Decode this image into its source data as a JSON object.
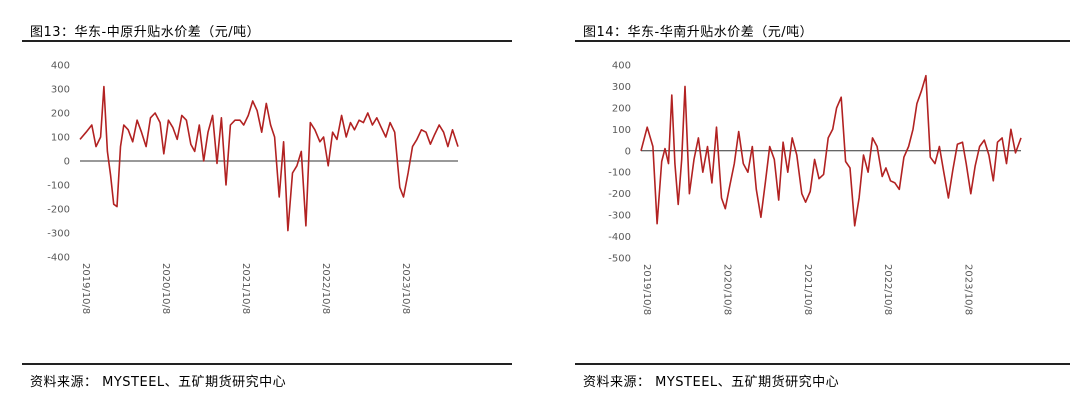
{
  "charts": [
    {
      "title": "图13：华东-中原升贴水价差（元/吨）",
      "source": "资料来源：  MYSTEEL、五矿期货研究中心"
    },
    {
      "title": "图14：华东-华南升贴水价差（元/吨）",
      "source": "资料来源：  MYSTEEL、五矿期货研究中心"
    }
  ],
  "chart_data": [
    {
      "type": "line",
      "title": "图13：华东-中原升贴水价差（元/吨）",
      "xlabel": "",
      "ylabel": "",
      "x_ticks": [
        "2019/10/8",
        "2020/10/8",
        "2021/10/8",
        "2022/10/8",
        "2023/10/8"
      ],
      "y_ticks": [
        400,
        300,
        200,
        100,
        0,
        -100,
        -200,
        -300,
        -400
      ],
      "ylim": [
        -400,
        400
      ],
      "xlim": [
        "2019-10-08",
        "2024-06-30"
      ],
      "grid": false,
      "legend": "none",
      "series_color": "#b22222",
      "series": [
        {
          "x": [
            "2019-10-08",
            "2019-11-05",
            "2019-12-01",
            "2019-12-20",
            "2020-01-10",
            "2020-01-25",
            "2020-02-10",
            "2020-02-25",
            "2020-03-10",
            "2020-03-25",
            "2020-04-10",
            "2020-04-25",
            "2020-05-15",
            "2020-06-05",
            "2020-06-25",
            "2020-07-15",
            "2020-08-05",
            "2020-08-25",
            "2020-09-15",
            "2020-10-08",
            "2020-10-25",
            "2020-11-15",
            "2020-12-05",
            "2020-12-25",
            "2021-01-15",
            "2021-02-05",
            "2021-02-25",
            "2021-03-15",
            "2021-04-05",
            "2021-04-25",
            "2021-05-15",
            "2021-06-05",
            "2021-06-25",
            "2021-07-15",
            "2021-08-05",
            "2021-08-25",
            "2021-09-15",
            "2021-10-08",
            "2021-10-25",
            "2021-11-15",
            "2021-12-05",
            "2021-12-25",
            "2022-01-15",
            "2022-02-05",
            "2022-02-25",
            "2022-03-15",
            "2022-04-05",
            "2022-04-25",
            "2022-05-15",
            "2022-06-05",
            "2022-06-25",
            "2022-07-15",
            "2022-08-05",
            "2022-08-25",
            "2022-09-15",
            "2022-10-08",
            "2022-10-25",
            "2022-11-15",
            "2022-12-05",
            "2022-12-25",
            "2023-01-15",
            "2023-02-05",
            "2023-02-25",
            "2023-03-15",
            "2023-04-05",
            "2023-04-25",
            "2023-05-15",
            "2023-06-05",
            "2023-06-25",
            "2023-07-15",
            "2023-08-05",
            "2023-08-25",
            "2023-09-15",
            "2023-10-08",
            "2023-10-25",
            "2023-11-15",
            "2023-12-05",
            "2023-12-25",
            "2024-01-15",
            "2024-02-05",
            "2024-02-25",
            "2024-03-15",
            "2024-04-05",
            "2024-04-25",
            "2024-05-15",
            "2024-06-05",
            "2024-06-30"
          ],
          "values": [
            90,
            120,
            150,
            60,
            100,
            310,
            40,
            -60,
            -180,
            -190,
            60,
            150,
            130,
            80,
            170,
            120,
            60,
            180,
            200,
            160,
            30,
            170,
            140,
            90,
            190,
            170,
            70,
            40,
            150,
            0,
            120,
            190,
            -10,
            180,
            -100,
            150,
            170,
            170,
            150,
            190,
            250,
            210,
            120,
            240,
            150,
            100,
            -150,
            80,
            -290,
            -50,
            -20,
            40,
            -270,
            160,
            130,
            80,
            100,
            -20,
            120,
            90,
            190,
            100,
            160,
            130,
            170,
            160,
            200,
            150,
            180,
            140,
            100,
            160,
            120,
            -110,
            -150,
            -50,
            60,
            90,
            130,
            120,
            70,
            110,
            150,
            120,
            60,
            130,
            60
          ]
        }
      ]
    },
    {
      "type": "line",
      "title": "图14：华东-华南升贴水价差（元/吨）",
      "xlabel": "",
      "ylabel": "",
      "x_ticks": [
        "2019/10/8",
        "2020/10/8",
        "2021/10/8",
        "2022/10/8",
        "2023/10/8"
      ],
      "y_ticks": [
        400,
        300,
        200,
        100,
        0,
        -100,
        -200,
        -300,
        -400,
        -500
      ],
      "ylim": [
        -500,
        400
      ],
      "xlim": [
        "2019-10-08",
        "2024-06-30"
      ],
      "grid": false,
      "legend": "none",
      "series_color": "#b22222",
      "series": [
        {
          "x": [
            "2019-10-08",
            "2019-11-05",
            "2019-12-01",
            "2019-12-20",
            "2020-01-10",
            "2020-01-25",
            "2020-02-10",
            "2020-02-25",
            "2020-03-10",
            "2020-03-25",
            "2020-04-10",
            "2020-04-25",
            "2020-05-15",
            "2020-06-05",
            "2020-06-25",
            "2020-07-15",
            "2020-08-05",
            "2020-08-25",
            "2020-09-15",
            "2020-10-08",
            "2020-10-25",
            "2020-11-15",
            "2020-12-05",
            "2020-12-25",
            "2021-01-15",
            "2021-02-05",
            "2021-02-25",
            "2021-03-15",
            "2021-04-05",
            "2021-04-25",
            "2021-05-15",
            "2021-06-05",
            "2021-06-25",
            "2021-07-15",
            "2021-08-05",
            "2021-08-25",
            "2021-09-15",
            "2021-10-08",
            "2021-10-25",
            "2021-11-15",
            "2021-12-05",
            "2021-12-25",
            "2022-01-15",
            "2022-02-05",
            "2022-02-25",
            "2022-03-15",
            "2022-04-05",
            "2022-04-25",
            "2022-05-15",
            "2022-06-05",
            "2022-06-25",
            "2022-07-15",
            "2022-08-05",
            "2022-08-25",
            "2022-09-15",
            "2022-10-08",
            "2022-10-25",
            "2022-11-15",
            "2022-12-05",
            "2022-12-25",
            "2023-01-15",
            "2023-02-05",
            "2023-02-25",
            "2023-03-15",
            "2023-04-05",
            "2023-04-25",
            "2023-05-15",
            "2023-06-05",
            "2023-06-25",
            "2023-07-15",
            "2023-08-05",
            "2023-08-25",
            "2023-09-15",
            "2023-10-08",
            "2023-10-25",
            "2023-11-15",
            "2023-12-05",
            "2023-12-25",
            "2024-01-15",
            "2024-02-05",
            "2024-02-25",
            "2024-03-15",
            "2024-04-05",
            "2024-04-25",
            "2024-05-15",
            "2024-06-05",
            "2024-06-30"
          ],
          "values": [
            0,
            110,
            20,
            -340,
            -50,
            10,
            -60,
            260,
            -60,
            -250,
            -40,
            300,
            -200,
            -40,
            60,
            -100,
            20,
            -150,
            110,
            -220,
            -270,
            -160,
            -60,
            90,
            -60,
            -100,
            20,
            -180,
            -310,
            -150,
            20,
            -40,
            -230,
            40,
            -100,
            60,
            -20,
            -200,
            -240,
            -190,
            -40,
            -130,
            -110,
            60,
            100,
            200,
            250,
            -50,
            -80,
            -350,
            -220,
            -20,
            -100,
            60,
            20,
            -120,
            -80,
            -140,
            -150,
            -180,
            -30,
            20,
            100,
            220,
            280,
            350,
            -30,
            -60,
            20,
            -100,
            -220,
            -90,
            30,
            40,
            -60,
            -200,
            -70,
            20,
            50,
            -20,
            -140,
            40,
            60,
            -60,
            100,
            -10,
            60
          ]
        }
      ]
    }
  ]
}
